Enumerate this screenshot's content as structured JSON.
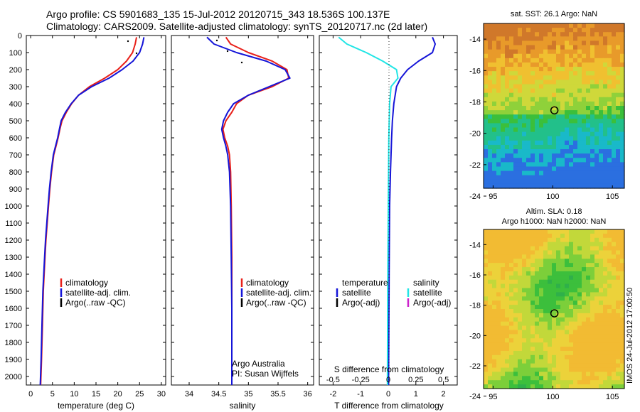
{
  "header": {
    "line1": "Argo profile: CS 5901683_135 15-Jul-2012 20120715_343 18.536S 100.137E",
    "line2": "Climatology: CARS2009. Satellite-adjusted climatology: synTS_20120717.nc (2d later)"
  },
  "colors": {
    "climatology": "#e8201a",
    "satellite": "#1515d8",
    "argo": "#000000",
    "salinity_satellite": "#22e5e5",
    "salinity_argo": "#cc22cc"
  },
  "depth_axis": {
    "ylim": [
      0,
      2050
    ],
    "ticks": [
      "0",
      "100",
      "200",
      "300",
      "400",
      "500",
      "600",
      "700",
      "800",
      "900",
      "1000",
      "1100",
      "1200",
      "1300",
      "1400",
      "1500",
      "1600",
      "1700",
      "1800",
      "1900",
      "2000"
    ]
  },
  "legend": {
    "climatology": "climatology",
    "satellite": "satellite-adj. clim.",
    "argo": "Argo(..raw -QC)"
  },
  "diff_legend": {
    "temperature_head": "temperature",
    "salinity_head": "salinity",
    "satellite": "satellite",
    "argo": "Argo(-adj)"
  },
  "credit": {
    "line1": "Argo Australia",
    "line2": "PI: Susan Wijffels"
  },
  "maps": {
    "sst_title": "sat. SST: 26.1  Argo: NaN",
    "sla_title1": "Altim. SLA: 0.18",
    "sla_title2": "Argo h1000: NaN h2000: NaN",
    "xticks": [
      "95",
      "100",
      "105"
    ],
    "sst_yticks": [
      "-14",
      "-16",
      "-18",
      "-20",
      "-22",
      "-24"
    ],
    "sla_yticks": [
      "-14",
      "-16",
      "-18",
      "-20",
      "-22",
      "-24"
    ],
    "float_lon": 100.137,
    "float_lat": -18.536
  },
  "stamp": "IMOS 24-Jul-2012 17:00:50",
  "chart_data": [
    {
      "type": "line",
      "xlabel": "temperature (deg C)",
      "xlim": [
        -1,
        31
      ],
      "xticks": [
        "0",
        "5",
        "10",
        "15",
        "20",
        "25",
        "30"
      ],
      "series": [
        {
          "name": "climatology",
          "x": [
            24.3,
            24,
            23.4,
            22,
            20,
            17,
            13.5,
            11,
            9.4,
            8.2,
            7.2,
            6.7,
            6.3,
            5.8,
            5.3,
            4.8,
            4.4,
            4.1,
            3.8,
            3.5,
            3.3,
            3.1,
            2.9,
            2.7,
            2.5,
            2.3
          ],
          "y": [
            10,
            50,
            100,
            150,
            200,
            250,
            300,
            350,
            400,
            450,
            500,
            550,
            600,
            650,
            700,
            800,
            900,
            1000,
            1100,
            1200,
            1300,
            1400,
            1500,
            1700,
            1900,
            2050
          ]
        },
        {
          "name": "satellite-adj. clim.",
          "x": [
            26,
            25.7,
            25,
            23.5,
            21,
            18,
            14,
            11,
            9.3,
            8,
            7,
            6.6,
            6.2,
            5.7,
            5.2,
            4.7,
            4.3,
            4,
            3.7,
            3.4,
            3.2,
            3,
            2.8,
            2.6,
            2.4,
            2.2
          ],
          "y": [
            10,
            50,
            100,
            150,
            200,
            250,
            300,
            350,
            400,
            450,
            500,
            550,
            600,
            650,
            700,
            800,
            900,
            1000,
            1100,
            1200,
            1300,
            1400,
            1500,
            1700,
            1900,
            2050
          ]
        }
      ]
    },
    {
      "type": "line",
      "xlabel": "salinity",
      "xlim": [
        33.7,
        36.1
      ],
      "xticks": [
        "34",
        "34.5",
        "35",
        "35.5",
        "36"
      ],
      "series": [
        {
          "name": "climatology",
          "x": [
            34.62,
            34.7,
            35.0,
            35.4,
            35.65,
            35.68,
            35.4,
            35.0,
            34.8,
            34.72,
            34.62,
            34.57,
            34.6,
            34.65,
            34.68,
            34.7,
            34.71,
            34.72,
            34.72,
            34.72,
            34.72
          ],
          "y": [
            10,
            50,
            100,
            150,
            200,
            250,
            300,
            350,
            400,
            450,
            500,
            550,
            600,
            650,
            700,
            800,
            1000,
            1300,
            1600,
            1900,
            2050
          ]
        },
        {
          "name": "satellite-adj. clim.",
          "x": [
            34.3,
            34.42,
            34.8,
            35.3,
            35.62,
            35.7,
            35.35,
            35.0,
            34.75,
            34.65,
            34.58,
            34.55,
            34.58,
            34.62,
            34.65,
            34.68,
            34.7,
            34.71,
            34.72,
            34.72,
            34.72
          ],
          "y": [
            10,
            50,
            100,
            150,
            200,
            250,
            300,
            350,
            400,
            450,
            500,
            550,
            600,
            650,
            700,
            800,
            1000,
            1300,
            1600,
            1900,
            2050
          ]
        }
      ]
    },
    {
      "type": "line",
      "xlabel": "T difference from climatology",
      "top_label": "S difference from climatology",
      "xlim": [
        -2.5,
        2.5
      ],
      "xticks": [
        "-2",
        "-1",
        "0",
        "1",
        "2"
      ],
      "sticks": [
        "-0.5",
        "-0.25",
        "0",
        "0.25",
        "0.5"
      ],
      "series": [
        {
          "name": "temperature satellite",
          "x": [
            1.6,
            1.7,
            1.6,
            1.1,
            0.7,
            0.45,
            0.3,
            0.25,
            0.2,
            0.15,
            0.12,
            0.1,
            0.08,
            0.05,
            0.03,
            0.01
          ],
          "y": [
            10,
            50,
            100,
            150,
            200,
            250,
            300,
            350,
            400,
            500,
            600,
            700,
            800,
            1000,
            1400,
            2050
          ]
        },
        {
          "name": "salinity satellite",
          "x": [
            -1.8,
            -1.5,
            -0.8,
            -0.2,
            0.3,
            0.35,
            0.1,
            0.05,
            0.02,
            0.0,
            -0.02,
            -0.03
          ],
          "y": [
            10,
            50,
            100,
            150,
            200,
            250,
            300,
            400,
            600,
            1000,
            1500,
            2050
          ]
        }
      ]
    }
  ]
}
